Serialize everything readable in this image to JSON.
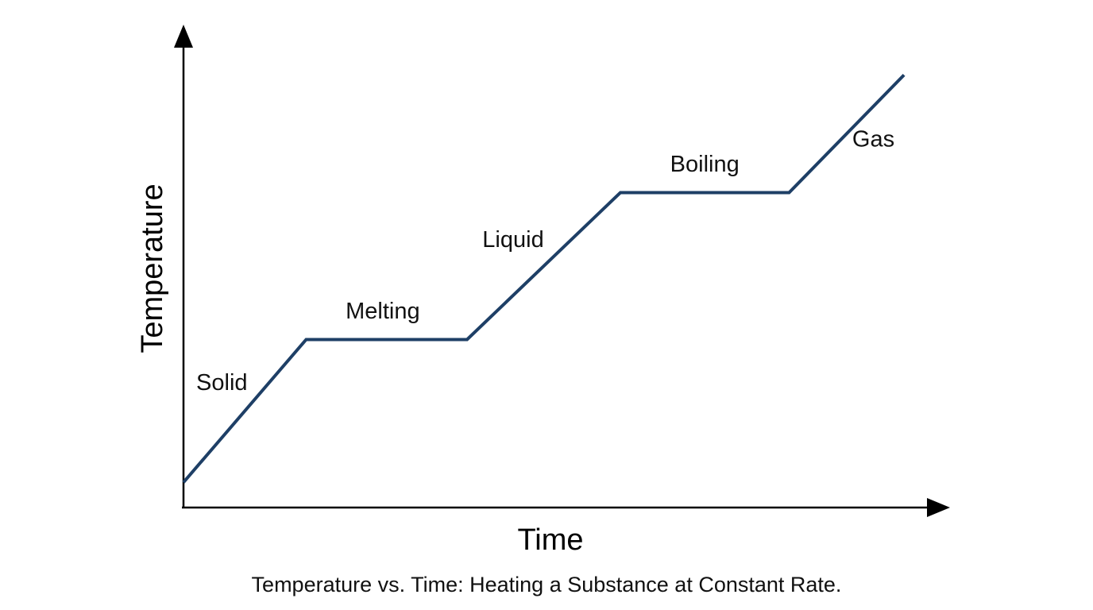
{
  "chart_data": {
    "type": "line",
    "xlabel": "Time",
    "ylabel": "Temperature",
    "caption": "Temperature vs. Time: Heating a Substance at Constant Rate.",
    "x_ticks": "none",
    "y_ticks": "none",
    "grid": false,
    "legend": "none",
    "colors": {
      "line": "#1e3f66",
      "axes": "#000000"
    },
    "series": [
      {
        "x": [
          0,
          16,
          37,
          57,
          79,
          94
        ],
        "y": [
          6,
          40,
          40,
          75,
          75,
          103
        ]
      }
    ],
    "xlim": [
      0,
      100
    ],
    "ylim": [
      0,
      115
    ],
    "phase_labels": [
      {
        "text": "Solid",
        "x": 5,
        "y": 28
      },
      {
        "text": "Melting",
        "x": 26,
        "y": 45
      },
      {
        "text": "Liquid",
        "x": 43,
        "y": 62
      },
      {
        "text": "Boiling",
        "x": 68,
        "y": 80
      },
      {
        "text": "Gas",
        "x": 90,
        "y": 86
      }
    ]
  }
}
